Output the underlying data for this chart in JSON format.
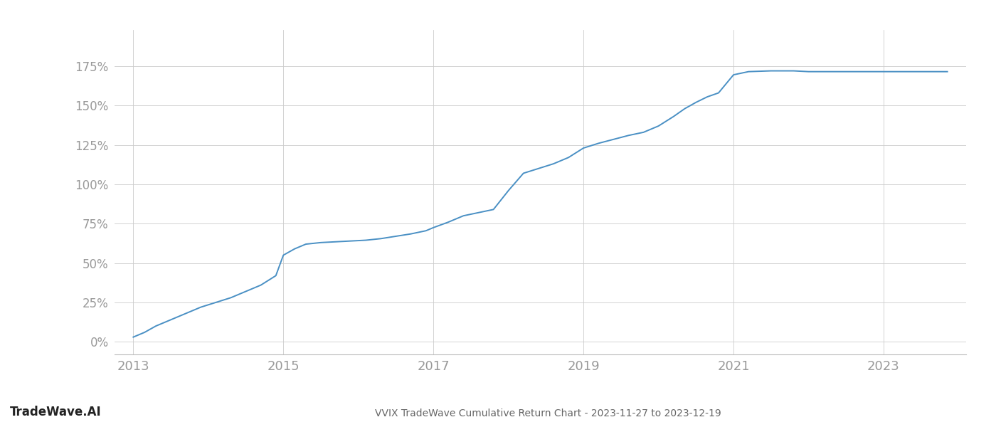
{
  "title": "VVIX TradeWave Cumulative Return Chart - 2023-11-27 to 2023-12-19",
  "watermark": "TradeWave.AI",
  "line_color": "#4a90c4",
  "background_color": "#ffffff",
  "grid_color": "#cccccc",
  "x_values": [
    2013.0,
    2013.15,
    2013.3,
    2013.5,
    2013.7,
    2013.9,
    2014.1,
    2014.3,
    2014.5,
    2014.7,
    2014.9,
    2015.0,
    2015.15,
    2015.3,
    2015.5,
    2015.7,
    2015.9,
    2016.1,
    2016.3,
    2016.5,
    2016.7,
    2016.9,
    2017.0,
    2017.2,
    2017.4,
    2017.6,
    2017.8,
    2018.0,
    2018.2,
    2018.4,
    2018.5,
    2018.6,
    2018.8,
    2019.0,
    2019.2,
    2019.4,
    2019.6,
    2019.8,
    2020.0,
    2020.1,
    2020.2,
    2020.35,
    2020.5,
    2020.65,
    2020.8,
    2021.0,
    2021.2,
    2021.5,
    2021.8,
    2022.0,
    2022.3,
    2022.6,
    2022.9,
    2023.0,
    2023.3,
    2023.6,
    2023.85
  ],
  "y_values": [
    3.0,
    6.0,
    10.0,
    14.0,
    18.0,
    22.0,
    25.0,
    28.0,
    32.0,
    36.0,
    42.0,
    55.0,
    59.0,
    62.0,
    63.0,
    63.5,
    64.0,
    64.5,
    65.5,
    67.0,
    68.5,
    70.5,
    72.5,
    76.0,
    80.0,
    82.0,
    84.0,
    96.0,
    107.0,
    110.0,
    111.5,
    113.0,
    117.0,
    123.0,
    126.0,
    128.5,
    131.0,
    133.0,
    137.0,
    140.0,
    143.0,
    148.0,
    152.0,
    155.5,
    158.0,
    169.5,
    171.5,
    172.0,
    172.0,
    171.5,
    171.5,
    171.5,
    171.5,
    171.5,
    171.5,
    171.5,
    171.5
  ],
  "xlim": [
    2012.75,
    2024.1
  ],
  "ylim": [
    -8,
    198
  ],
  "xticks": [
    2013,
    2015,
    2017,
    2019,
    2021,
    2023
  ],
  "yticks": [
    0,
    25,
    50,
    75,
    100,
    125,
    150,
    175
  ],
  "ytick_labels": [
    "0%",
    "25%",
    "50%",
    "75%",
    "100%",
    "125%",
    "150%",
    "175%"
  ],
  "line_width": 1.4,
  "tick_label_color": "#999999",
  "title_color": "#666666",
  "watermark_color": "#222222"
}
